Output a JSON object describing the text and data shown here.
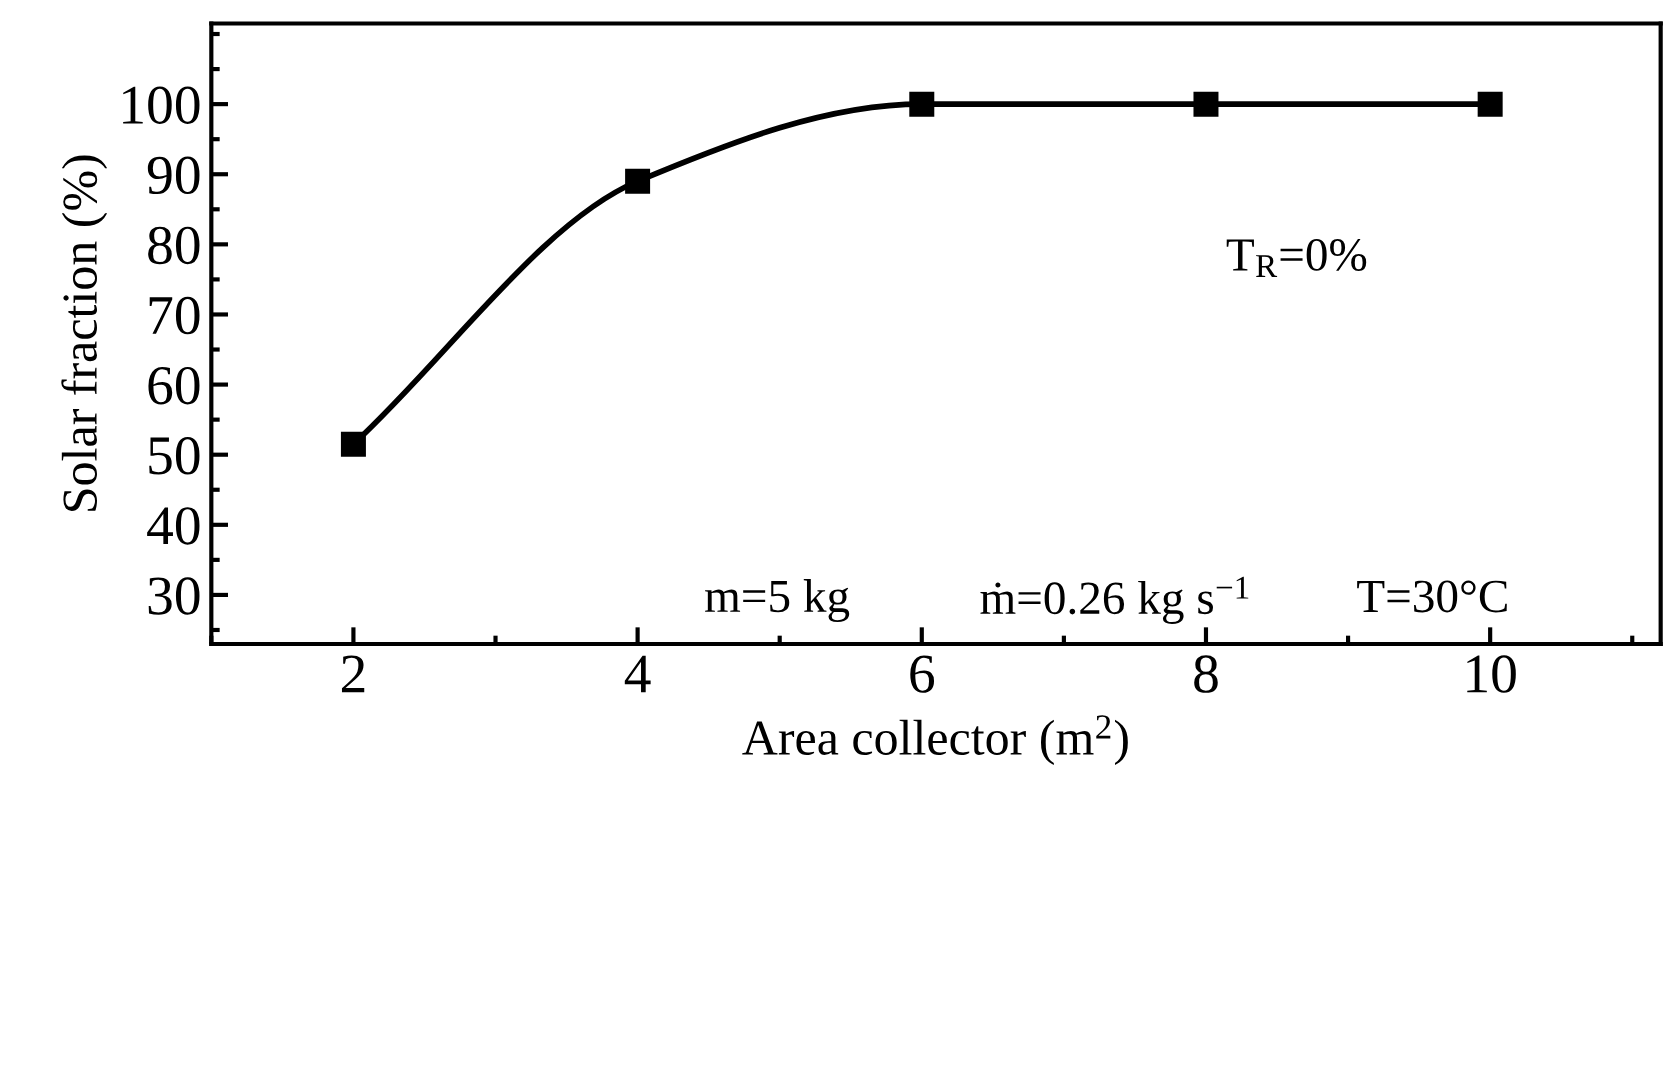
{
  "chart_data": {
    "type": "line",
    "xlabel": "Area collector (m$^{2}$)",
    "ylabel": "Solar fraction (%)",
    "x": [
      2,
      4,
      6,
      8,
      10
    ],
    "series": [
      {
        "color": "#000000",
        "values": [
          51.5,
          89,
          100,
          100,
          100
        ]
      }
    ],
    "marker": "square",
    "line_style": "solid",
    "grid": false,
    "legend": false,
    "xlim": [
      1,
      11.2
    ],
    "ylim": [
      23,
      111.5
    ],
    "xticks": [
      2,
      4,
      6,
      8,
      10
    ],
    "yticks": [
      30,
      40,
      50,
      60,
      70,
      80,
      90,
      100
    ],
    "annotations": [
      "T$_{R}$=0%",
      "m=5 kg",
      "ṁ=0.26 kg s$^{−1}$",
      "T=30°C"
    ]
  }
}
